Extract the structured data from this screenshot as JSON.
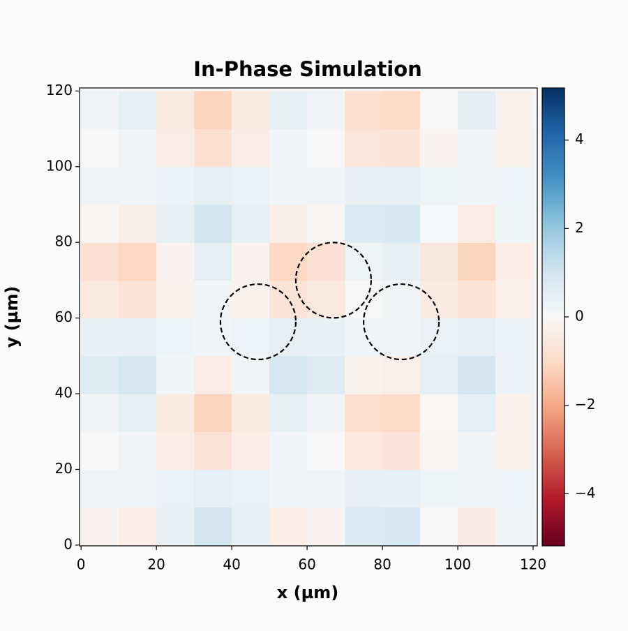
{
  "chart_data": {
    "type": "heatmap",
    "title": "In-Phase Simulation",
    "x_label": "x (µm)",
    "y_label": "y (µm)",
    "colormap": "RdBu",
    "x": [
      5,
      15,
      25,
      35,
      45,
      55,
      65,
      75,
      85,
      95,
      105,
      115
    ],
    "y": [
      5,
      15,
      25,
      35,
      45,
      55,
      65,
      75,
      85,
      95,
      105,
      115
    ],
    "z": [
      [
        -0.14,
        -0.38,
        0.42,
        0.99,
        0.42,
        -0.38,
        -0.14,
        0.76,
        0.89,
        0.04,
        -0.43,
        0.23
      ],
      [
        0.23,
        0.17,
        0.36,
        0.49,
        0.36,
        0.17,
        0.23,
        0.44,
        0.47,
        0.27,
        0.16,
        0.31
      ],
      [
        -0.01,
        0.16,
        -0.38,
        -0.76,
        -0.38,
        0.16,
        -0.01,
        -0.61,
        -0.69,
        -0.12,
        0.19,
        -0.25
      ],
      [
        0.16,
        0.45,
        -0.49,
        -1.16,
        -0.49,
        0.45,
        0.16,
        -0.9,
        -1.04,
        -0.04,
        0.51,
        -0.26
      ],
      [
        0.69,
        0.94,
        0.14,
        -0.42,
        0.14,
        0.94,
        0.69,
        -0.2,
        -0.32,
        0.52,
        0.99,
        0.34
      ],
      [
        0.41,
        0.46,
        0.29,
        0.16,
        0.29,
        0.46,
        0.41,
        0.21,
        0.19,
        0.37,
        0.47,
        0.33
      ],
      [
        -0.57,
        -0.74,
        -0.19,
        0.2,
        -0.19,
        -0.74,
        -0.57,
        0.04,
        0.13,
        -0.46,
        -0.78,
        -0.32
      ],
      [
        -0.8,
        -1.09,
        -0.14,
        0.53,
        -0.14,
        -1.09,
        -0.8,
        0.26,
        0.41,
        -0.6,
        -1.15,
        -0.37
      ],
      [
        -0.11,
        -0.34,
        0.44,
        1.0,
        0.44,
        -0.34,
        -0.11,
        0.77,
        0.89,
        0.06,
        -0.4,
        0.25
      ],
      [
        0.23,
        0.18,
        0.34,
        0.45,
        0.34,
        0.18,
        0.23,
        0.4,
        0.43,
        0.26,
        0.17,
        0.3
      ],
      [
        -0.01,
        0.16,
        -0.4,
        -0.81,
        -0.4,
        0.16,
        -0.01,
        -0.65,
        -0.73,
        -0.13,
        0.2,
        -0.27
      ],
      [
        0.19,
        0.47,
        -0.47,
        -1.15,
        -0.47,
        0.47,
        0.19,
        -0.88,
        -1.03,
        -0.02,
        0.54,
        -0.24
      ]
    ],
    "xlim": [
      -0.4,
      121.1
    ],
    "ylim": [
      -0.2,
      120.8
    ],
    "xticks": [
      0,
      20,
      40,
      60,
      80,
      100,
      120
    ],
    "yticks": [
      0,
      20,
      40,
      60,
      80,
      100,
      120
    ],
    "zlim": [
      -5.18,
      5.18
    ],
    "zticks": [
      {
        "value": -4,
        "label": "−4"
      },
      {
        "value": -2,
        "label": "−2"
      },
      0,
      2,
      4
    ],
    "circles": [
      {
        "x": 47,
        "y": 59,
        "r": 10
      },
      {
        "x": 67,
        "y": 70,
        "r": 10
      },
      {
        "x": 85,
        "y": 59,
        "r": 10
      }
    ],
    "circle_color": "#000000"
  }
}
